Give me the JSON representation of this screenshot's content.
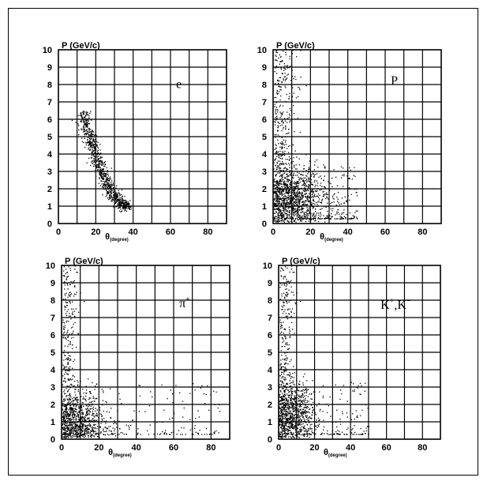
{
  "chart_data": [
    {
      "type": "scatter",
      "particle_label": "e",
      "ylabel": "P (GeV/c)",
      "xlabel_main": "θ",
      "xlabel_sub": "(degree)",
      "xlim": [
        0,
        90
      ],
      "ylim": [
        0,
        10
      ],
      "xticks": [
        "0",
        "20",
        "40",
        "60",
        "80"
      ],
      "yticks": [
        "0",
        "1",
        "2",
        "3",
        "4",
        "5",
        "6",
        "7",
        "8",
        "9",
        "10"
      ],
      "grid": true,
      "distribution": {
        "kind": "band",
        "theta_range": [
          13,
          37
        ],
        "p_at_min_theta": 6.3,
        "p_at_max_theta": 1.0
      }
    },
    {
      "type": "scatter",
      "particle_label": "P",
      "ylabel": "P (GeV/c)",
      "xlabel_main": "θ",
      "xlabel_sub": "(degree)",
      "xlim": [
        0,
        90
      ],
      "ylim": [
        0,
        10
      ],
      "xticks": [
        "0",
        "20",
        "40",
        "60",
        "80"
      ],
      "yticks": [
        "0",
        "1",
        "2",
        "3",
        "4",
        "5",
        "6",
        "7",
        "8",
        "9",
        "10"
      ],
      "grid": true,
      "distribution": {
        "kind": "cloud",
        "theta_peak": 10,
        "p_peak": 1.5,
        "theta_max": 45,
        "p_max": 10
      }
    },
    {
      "type": "scatter",
      "particle_label": "π",
      "particle_sup": "+",
      "ylabel": "P (GeV/c)",
      "xlabel_main": "θ",
      "xlabel_sub": "(degree)",
      "xlim": [
        0,
        90
      ],
      "ylim": [
        0,
        10
      ],
      "xticks": [
        "0",
        "20",
        "40",
        "60",
        "80"
      ],
      "yticks": [
        "0",
        "1",
        "2",
        "3",
        "4",
        "5",
        "6",
        "7",
        "8",
        "9",
        "10"
      ],
      "grid": true,
      "distribution": {
        "kind": "cloud",
        "theta_peak": 8,
        "p_peak": 1.0,
        "theta_max": 85,
        "p_max": 10
      }
    },
    {
      "type": "scatter",
      "particle_label": "K",
      "particle_sup": "+",
      "particle_label2": ",K",
      "particle_sup2": "−",
      "ylabel": "P (GeV/c)",
      "xlabel_main": "θ",
      "xlabel_sub": "(degree)",
      "xlim": [
        0,
        90
      ],
      "ylim": [
        0,
        10
      ],
      "xticks": [
        "0",
        "20",
        "40",
        "60",
        "80"
      ],
      "yticks": [
        "0",
        "1",
        "2",
        "3",
        "4",
        "5",
        "6",
        "7",
        "8",
        "9",
        "10"
      ],
      "grid": true,
      "distribution": {
        "kind": "cloud",
        "theta_peak": 7,
        "p_peak": 1.5,
        "theta_max": 50,
        "p_max": 10
      }
    }
  ]
}
